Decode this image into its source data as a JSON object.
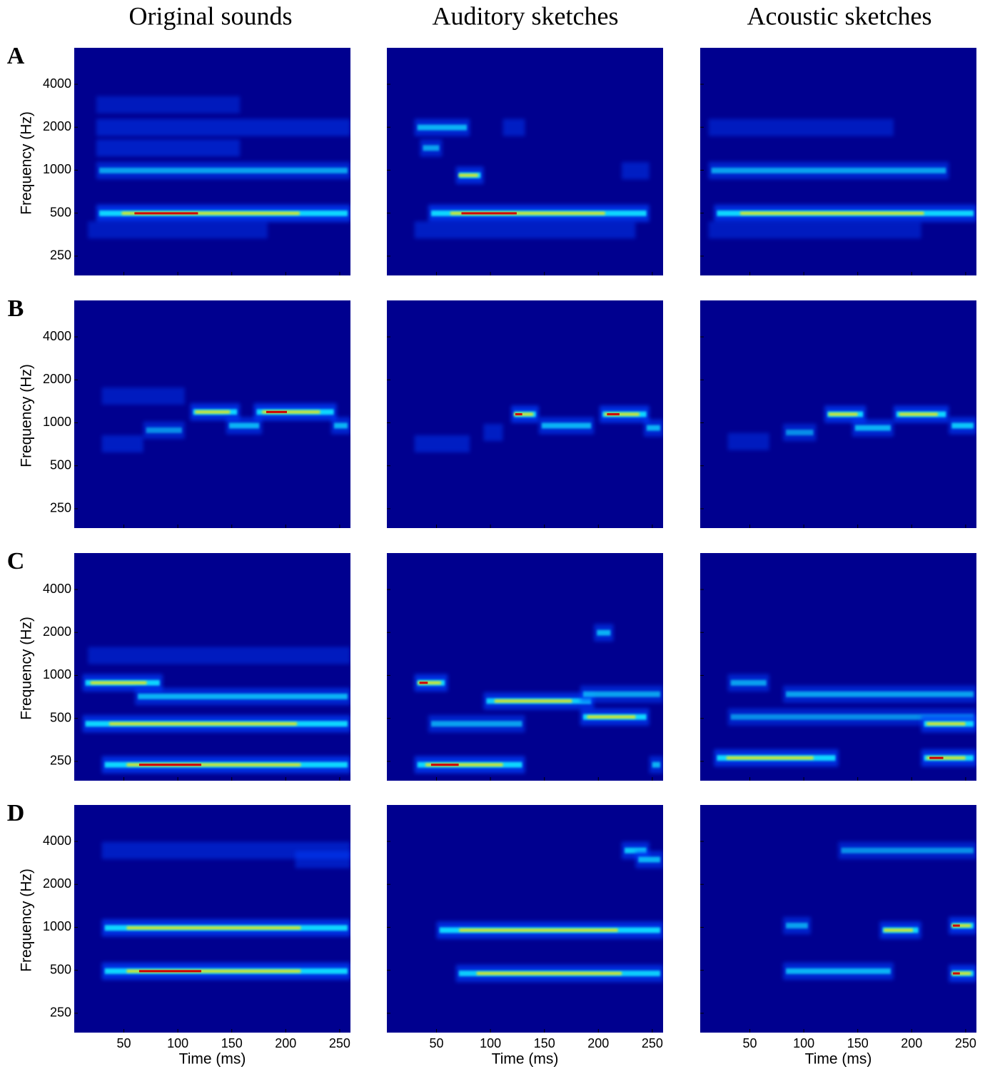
{
  "columns": [
    "Original sounds",
    "Auditory sketches",
    "Acoustic sketches"
  ],
  "rows": [
    "A",
    "B",
    "C",
    "D"
  ],
  "y_axis": {
    "label": "Frequency (Hz)",
    "scale": "log",
    "lim": [
      183,
      7200
    ],
    "ticks": [
      250,
      500,
      1000,
      2000,
      4000
    ]
  },
  "x_axis": {
    "label": "Time (ms)",
    "lim": [
      4,
      260
    ],
    "ticks": [
      50,
      100,
      150,
      200,
      250
    ]
  }
}
